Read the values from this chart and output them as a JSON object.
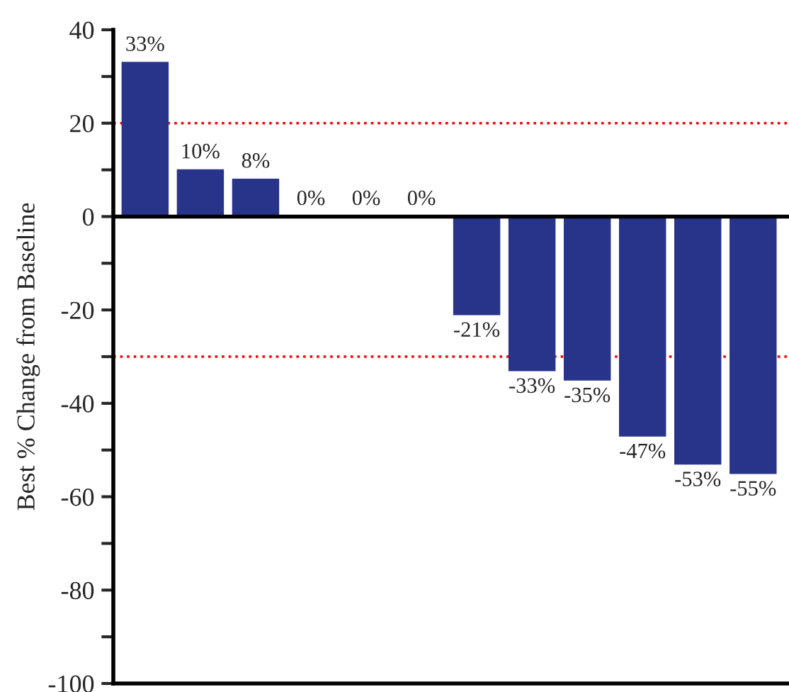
{
  "chart_data": {
    "type": "bar",
    "ylabel": "Best % Change from Baseline",
    "categories": [
      null,
      null,
      null,
      null,
      null,
      null,
      null,
      null,
      null,
      null,
      null,
      null
    ],
    "series": [
      {
        "color": "#28348a",
        "values": [
          33,
          10,
          8,
          0,
          0,
          0,
          -21,
          -33,
          -35,
          -47,
          -53,
          -55
        ],
        "value_labels": [
          "33%",
          "10%",
          "8%",
          "0%",
          "0%",
          "0%",
          "-21%",
          "-33%",
          "-35%",
          "-47%",
          "-53%",
          "-55%"
        ]
      }
    ],
    "ylim": [
      -100,
      40
    ],
    "yticks": [
      {
        "value": -100,
        "label": "-100"
      },
      {
        "value": -90,
        "label": null
      },
      {
        "value": -80,
        "label": "-80"
      },
      {
        "value": -70,
        "label": null
      },
      {
        "value": -60,
        "label": "-60"
      },
      {
        "value": -50,
        "label": null
      },
      {
        "value": -40,
        "label": "-40"
      },
      {
        "value": -30,
        "label": null
      },
      {
        "value": -20,
        "label": "-20"
      },
      {
        "value": -10,
        "label": null
      },
      {
        "value": 0,
        "label": "0"
      },
      {
        "value": 10,
        "label": null
      },
      {
        "value": 20,
        "label": "20"
      },
      {
        "value": 30,
        "label": null
      },
      {
        "value": 40,
        "label": "40"
      }
    ],
    "ref_lines": [
      {
        "axis": "y",
        "value": 20,
        "color": "#ff0000",
        "line_style": "dotted"
      },
      {
        "axis": "y",
        "value": -30,
        "color": "#ff0000",
        "line_style": "dotted"
      }
    ],
    "grid": false,
    "tick_labels": "y"
  }
}
